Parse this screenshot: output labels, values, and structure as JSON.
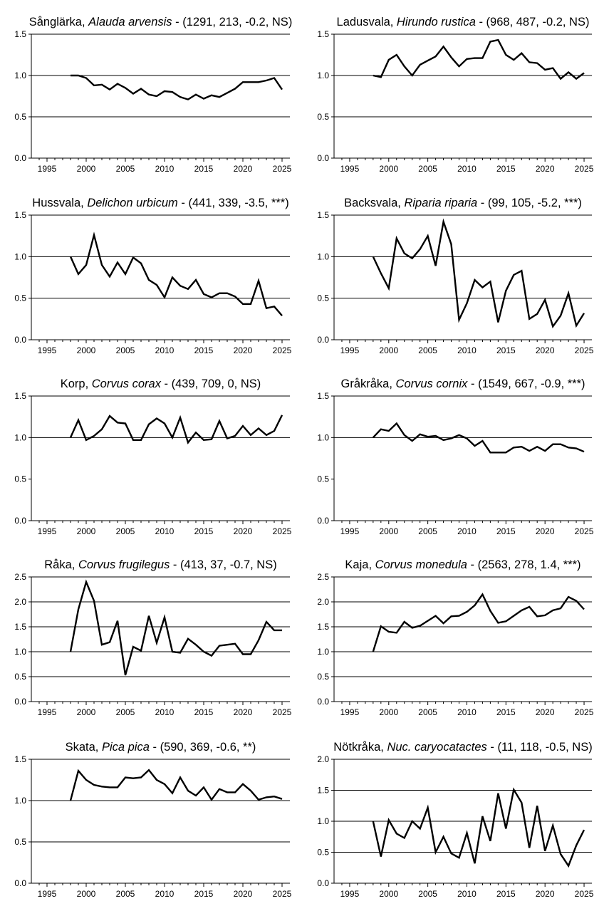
{
  "chart_data": [
    {
      "type": "line",
      "title": {
        "name": "Sånglärka",
        "latin": "Alauda arvensis",
        "stats": " - (1291, 213, -0.2, NS)"
      },
      "xlim": [
        1993,
        2026
      ],
      "ylim": [
        0,
        1.5
      ],
      "yticks": [
        "0.0",
        "0.5",
        "1.0",
        "1.5"
      ],
      "grid_y": [
        0.5,
        1.0,
        1.5
      ],
      "xticks": [
        1995,
        2000,
        2005,
        2010,
        2015,
        2020,
        2025
      ],
      "x": [
        1998,
        1999,
        2000,
        2001,
        2002,
        2003,
        2004,
        2005,
        2006,
        2007,
        2008,
        2009,
        2010,
        2011,
        2012,
        2013,
        2014,
        2015,
        2016,
        2017,
        2018,
        2019,
        2020,
        2021,
        2022,
        2023,
        2024,
        2025
      ],
      "values": [
        1.0,
        1.0,
        0.97,
        0.88,
        0.89,
        0.83,
        0.9,
        0.85,
        0.78,
        0.84,
        0.77,
        0.75,
        0.81,
        0.8,
        0.74,
        0.71,
        0.77,
        0.72,
        0.76,
        0.74,
        0.79,
        0.84,
        0.92,
        0.92,
        0.92,
        0.94,
        0.97,
        0.83
      ]
    },
    {
      "type": "line",
      "title": {
        "name": "Ladusvala",
        "latin": "Hirundo rustica",
        "stats": " - (968, 487, -0.2, NS)"
      },
      "xlim": [
        1993,
        2026
      ],
      "ylim": [
        0,
        1.5
      ],
      "yticks": [
        "0.0",
        "0.5",
        "1.0",
        "1.5"
      ],
      "grid_y": [
        0.5,
        1.0,
        1.5
      ],
      "xticks": [
        1995,
        2000,
        2005,
        2010,
        2015,
        2020,
        2025
      ],
      "x": [
        1998,
        1999,
        2000,
        2001,
        2002,
        2003,
        2004,
        2005,
        2006,
        2007,
        2008,
        2009,
        2010,
        2011,
        2012,
        2013,
        2014,
        2015,
        2016,
        2017,
        2018,
        2019,
        2020,
        2021,
        2022,
        2023,
        2024,
        2025
      ],
      "values": [
        1.0,
        0.98,
        1.19,
        1.25,
        1.11,
        1.0,
        1.13,
        1.18,
        1.23,
        1.35,
        1.22,
        1.11,
        1.2,
        1.21,
        1.21,
        1.41,
        1.43,
        1.25,
        1.19,
        1.27,
        1.16,
        1.15,
        1.07,
        1.09,
        0.96,
        1.04,
        0.96,
        1.03
      ]
    },
    {
      "type": "line",
      "title": {
        "name": "Hussvala",
        "latin": "Delichon urbicum",
        "stats": " - (441, 339, -3.5, ***)"
      },
      "xlim": [
        1993,
        2026
      ],
      "ylim": [
        0,
        1.5
      ],
      "yticks": [
        "0.0",
        "0.5",
        "1.0",
        "1.5"
      ],
      "grid_y": [
        0.5,
        1.0,
        1.5
      ],
      "xticks": [
        1995,
        2000,
        2005,
        2010,
        2015,
        2020,
        2025
      ],
      "x": [
        1998,
        1999,
        2000,
        2001,
        2002,
        2003,
        2004,
        2005,
        2006,
        2007,
        2008,
        2009,
        2010,
        2011,
        2012,
        2013,
        2014,
        2015,
        2016,
        2017,
        2018,
        2019,
        2020,
        2021,
        2022,
        2023,
        2024,
        2025
      ],
      "values": [
        1.0,
        0.79,
        0.9,
        1.26,
        0.9,
        0.76,
        0.93,
        0.79,
        0.99,
        0.92,
        0.72,
        0.66,
        0.51,
        0.75,
        0.65,
        0.61,
        0.72,
        0.55,
        0.51,
        0.56,
        0.56,
        0.52,
        0.43,
        0.43,
        0.71,
        0.38,
        0.4,
        0.29
      ]
    },
    {
      "type": "line",
      "title": {
        "name": "Backsvala",
        "latin": "Riparia riparia",
        "stats": " - (99, 105, -5.2, ***)"
      },
      "xlim": [
        1993,
        2026
      ],
      "ylim": [
        0,
        1.5
      ],
      "yticks": [
        "0.0",
        "0.5",
        "1.0",
        "1.5"
      ],
      "grid_y": [
        0.5,
        1.0,
        1.5
      ],
      "xticks": [
        1995,
        2000,
        2005,
        2010,
        2015,
        2020,
        2025
      ],
      "x": [
        1998,
        1999,
        2000,
        2001,
        2002,
        2003,
        2004,
        2005,
        2006,
        2007,
        2008,
        2009,
        2010,
        2011,
        2012,
        2013,
        2014,
        2015,
        2016,
        2017,
        2018,
        2019,
        2020,
        2021,
        2022,
        2023,
        2024,
        2025
      ],
      "values": [
        1.0,
        0.8,
        0.62,
        1.22,
        1.04,
        0.98,
        1.09,
        1.25,
        0.89,
        1.42,
        1.15,
        0.24,
        0.44,
        0.72,
        0.63,
        0.7,
        0.21,
        0.59,
        0.78,
        0.83,
        0.25,
        0.31,
        0.48,
        0.16,
        0.29,
        0.56,
        0.17,
        0.32
      ]
    },
    {
      "type": "line",
      "title": {
        "name": "Korp",
        "latin": "Corvus corax",
        "stats": " - (439, 709, 0, NS)"
      },
      "xlim": [
        1993,
        2026
      ],
      "ylim": [
        0,
        1.5
      ],
      "yticks": [
        "0.0",
        "0.5",
        "1.0",
        "1.5"
      ],
      "grid_y": [
        1.0,
        1.5
      ],
      "xticks": [
        1995,
        2000,
        2005,
        2010,
        2015,
        2020,
        2025
      ],
      "x": [
        1998,
        1999,
        2000,
        2001,
        2002,
        2003,
        2004,
        2005,
        2006,
        2007,
        2008,
        2009,
        2010,
        2011,
        2012,
        2013,
        2014,
        2015,
        2016,
        2017,
        2018,
        2019,
        2020,
        2021,
        2022,
        2023,
        2024,
        2025
      ],
      "values": [
        1.0,
        1.21,
        0.97,
        1.02,
        1.1,
        1.26,
        1.18,
        1.17,
        0.97,
        0.97,
        1.16,
        1.23,
        1.17,
        1.0,
        1.24,
        0.94,
        1.06,
        0.97,
        0.98,
        1.2,
        0.99,
        1.02,
        1.14,
        1.03,
        1.11,
        1.03,
        1.08,
        1.27
      ]
    },
    {
      "type": "line",
      "title": {
        "name": "Gråkråka",
        "latin": "Corvus cornix",
        "stats": " - (1549, 667, -0.9, ***)"
      },
      "xlim": [
        1993,
        2026
      ],
      "ylim": [
        0,
        1.5
      ],
      "yticks": [
        "0.0",
        "0.5",
        "1.0",
        "1.5"
      ],
      "grid_y": [
        1.0,
        1.5
      ],
      "xticks": [
        1995,
        2000,
        2005,
        2010,
        2015,
        2020,
        2025
      ],
      "x": [
        1998,
        1999,
        2000,
        2001,
        2002,
        2003,
        2004,
        2005,
        2006,
        2007,
        2008,
        2009,
        2010,
        2011,
        2012,
        2013,
        2014,
        2015,
        2016,
        2017,
        2018,
        2019,
        2020,
        2021,
        2022,
        2023,
        2024,
        2025
      ],
      "values": [
        1.0,
        1.1,
        1.08,
        1.17,
        1.03,
        0.96,
        1.04,
        1.01,
        1.02,
        0.97,
        0.99,
        1.03,
        0.99,
        0.9,
        0.96,
        0.82,
        0.82,
        0.82,
        0.88,
        0.89,
        0.84,
        0.89,
        0.84,
        0.92,
        0.92,
        0.88,
        0.87,
        0.83
      ]
    },
    {
      "type": "line",
      "title": {
        "name": "Råka",
        "latin": "Corvus frugilegus",
        "stats": " - (413, 37, -0.7, NS)"
      },
      "xlim": [
        1993,
        2026
      ],
      "ylim": [
        0,
        2.5
      ],
      "yticks": [
        "0.0",
        "0.5",
        "1.0",
        "1.5",
        "2.0",
        "2.5"
      ],
      "grid_y": [
        0.5,
        1.0,
        1.5,
        2.0,
        2.5
      ],
      "xticks": [
        1995,
        2000,
        2005,
        2010,
        2015,
        2020,
        2025
      ],
      "x": [
        1998,
        1999,
        2000,
        2001,
        2002,
        2003,
        2004,
        2005,
        2006,
        2007,
        2008,
        2009,
        2010,
        2011,
        2012,
        2013,
        2014,
        2015,
        2016,
        2017,
        2018,
        2019,
        2020,
        2021,
        2022,
        2023,
        2024,
        2025
      ],
      "values": [
        1.0,
        1.85,
        2.4,
        2.02,
        1.14,
        1.19,
        1.62,
        0.53,
        1.1,
        1.02,
        1.72,
        1.18,
        1.69,
        1.0,
        0.98,
        1.26,
        1.14,
        1.0,
        0.92,
        1.12,
        1.14,
        1.16,
        0.95,
        0.95,
        1.23,
        1.6,
        1.43,
        1.43
      ]
    },
    {
      "type": "line",
      "title": {
        "name": "Kaja",
        "latin": "Corvus monedula",
        "stats": " - (2563, 278, 1.4, ***)"
      },
      "xlim": [
        1993,
        2026
      ],
      "ylim": [
        0,
        2.5
      ],
      "yticks": [
        "0.0",
        "0.5",
        "1.0",
        "1.5",
        "2.0",
        "2.5"
      ],
      "grid_y": [
        0.5,
        1.0,
        1.5,
        2.0,
        2.5
      ],
      "xticks": [
        1995,
        2000,
        2005,
        2010,
        2015,
        2020,
        2025
      ],
      "x": [
        1998,
        1999,
        2000,
        2001,
        2002,
        2003,
        2004,
        2005,
        2006,
        2007,
        2008,
        2009,
        2010,
        2011,
        2012,
        2013,
        2014,
        2015,
        2016,
        2017,
        2018,
        2019,
        2020,
        2021,
        2022,
        2023,
        2024,
        2025
      ],
      "values": [
        1.0,
        1.51,
        1.4,
        1.38,
        1.6,
        1.48,
        1.52,
        1.62,
        1.72,
        1.57,
        1.71,
        1.72,
        1.8,
        1.93,
        2.15,
        1.82,
        1.58,
        1.61,
        1.72,
        1.83,
        1.9,
        1.71,
        1.73,
        1.83,
        1.87,
        2.1,
        2.02,
        1.85
      ]
    },
    {
      "type": "line",
      "title": {
        "name": "Skata",
        "latin": "Pica pica",
        "stats": " - (590, 369, -0.6, **)"
      },
      "xlim": [
        1993,
        2026
      ],
      "ylim": [
        0,
        1.5
      ],
      "yticks": [
        "0.0",
        "0.5",
        "1.0",
        "1.5"
      ],
      "grid_y": [
        0.5,
        1.0,
        1.5
      ],
      "xticks": [
        1995,
        2000,
        2005,
        2010,
        2015,
        2020,
        2025
      ],
      "x": [
        1998,
        1999,
        2000,
        2001,
        2002,
        2003,
        2004,
        2005,
        2006,
        2007,
        2008,
        2009,
        2010,
        2011,
        2012,
        2013,
        2014,
        2015,
        2016,
        2017,
        2018,
        2019,
        2020,
        2021,
        2022,
        2023,
        2024,
        2025
      ],
      "values": [
        1.0,
        1.36,
        1.25,
        1.19,
        1.17,
        1.16,
        1.16,
        1.28,
        1.27,
        1.28,
        1.37,
        1.25,
        1.2,
        1.09,
        1.28,
        1.12,
        1.06,
        1.16,
        1.01,
        1.14,
        1.1,
        1.1,
        1.2,
        1.12,
        1.01,
        1.04,
        1.05,
        1.02
      ]
    },
    {
      "type": "line",
      "title": {
        "name": "Nötkråka",
        "latin": "Nuc. caryocatactes",
        "stats": " - (11, 118, -0.5, NS)"
      },
      "xlim": [
        1993,
        2026
      ],
      "ylim": [
        0,
        2.0
      ],
      "yticks": [
        "0.0",
        "0.5",
        "1.0",
        "1.5",
        "2.0"
      ],
      "grid_y": [
        0.5,
        1.0,
        1.5,
        2.0
      ],
      "xticks": [
        1995,
        2000,
        2005,
        2010,
        2015,
        2020,
        2025
      ],
      "x": [
        1998,
        1999,
        2000,
        2001,
        2002,
        2003,
        2004,
        2005,
        2006,
        2007,
        2008,
        2009,
        2010,
        2011,
        2012,
        2013,
        2014,
        2015,
        2016,
        2017,
        2018,
        2019,
        2020,
        2021,
        2022,
        2023,
        2024,
        2025
      ],
      "values": [
        1.0,
        0.43,
        1.02,
        0.8,
        0.73,
        1.0,
        0.88,
        1.22,
        0.5,
        0.75,
        0.48,
        0.41,
        0.81,
        0.32,
        1.08,
        0.68,
        1.45,
        0.88,
        1.51,
        1.3,
        0.57,
        1.25,
        0.52,
        0.93,
        0.47,
        0.28,
        0.61,
        0.86
      ]
    }
  ]
}
